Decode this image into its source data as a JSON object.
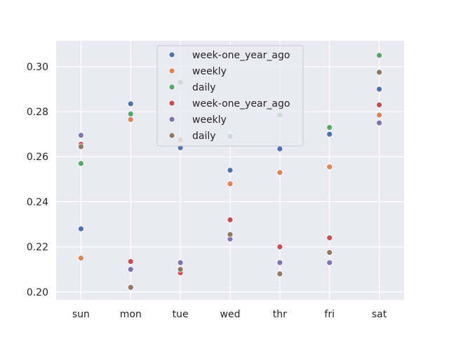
{
  "chart_data": {
    "type": "scatter",
    "title": "",
    "xlabel": "",
    "ylabel": "",
    "categories": [
      "sun",
      "mon",
      "tue",
      "wed",
      "thr",
      "fri",
      "sat"
    ],
    "ylim": [
      0.1965,
      0.3115
    ],
    "yticks": [
      0.2,
      0.22,
      0.24,
      0.26,
      0.28,
      0.3
    ],
    "ytick_labels": [
      "0.20",
      "0.22",
      "0.24",
      "0.26",
      "0.28",
      "0.30"
    ],
    "grid": true,
    "legend_position": "top-center",
    "series": [
      {
        "name": "week-one_year_ago",
        "color": "#4c72b0",
        "values": [
          0.228,
          0.2835,
          0.264,
          0.254,
          0.2635,
          0.27,
          0.29
        ]
      },
      {
        "name": "weekly",
        "color": "#dd8452",
        "values": [
          0.215,
          0.2765,
          0.2675,
          0.248,
          0.253,
          0.2555,
          0.2785
        ]
      },
      {
        "name": "daily",
        "color": "#55a868",
        "values": [
          0.257,
          0.279,
          0.293,
          0.269,
          0.2785,
          0.273,
          0.305
        ]
      },
      {
        "name": "week-one_year_ago",
        "color": "#c44e52",
        "values": [
          0.2655,
          0.2135,
          0.2085,
          0.232,
          0.22,
          0.224,
          0.283
        ]
      },
      {
        "name": "weekly",
        "color": "#8172b3",
        "values": [
          0.2695,
          0.21,
          0.213,
          0.2235,
          0.213,
          0.213,
          0.275
        ]
      },
      {
        "name": "daily",
        "color": "#937860",
        "values": [
          0.2645,
          0.202,
          0.21,
          0.2255,
          0.208,
          0.2175,
          0.2975
        ]
      }
    ]
  }
}
